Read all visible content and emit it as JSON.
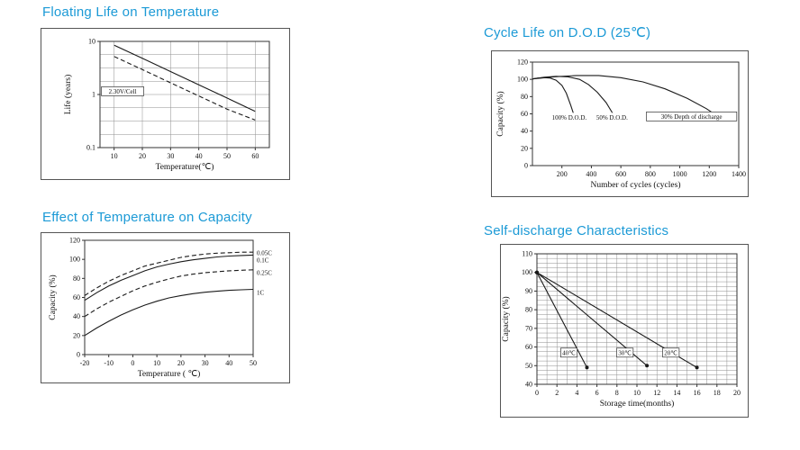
{
  "accent_color": "#1c9ad6",
  "background": "#ffffff",
  "chart_data": [
    {
      "name": "floating-life",
      "type": "line",
      "title": "Floating Life on Temperature",
      "xlabel": "Temperature(℃)",
      "ylabel": "Life (years)",
      "x_min": 5,
      "x_max": 65,
      "x_ticks": [
        10,
        20,
        30,
        40,
        50,
        60
      ],
      "y_scale": "log",
      "y_min": 0.1,
      "y_max": 10,
      "y_ticks": [
        0.1,
        1,
        10
      ],
      "x_grid_on_ticks": true,
      "y_grid_count": 8,
      "margins": {
        "l": 65,
        "r": 22,
        "t": 14,
        "b": 35
      },
      "series": [
        {
          "name": "float-life-upper-limit",
          "dashed": false,
          "points": [
            [
              10,
              8.5
            ],
            [
              20,
              4.8
            ],
            [
              30,
              2.7
            ],
            [
              40,
              1.52
            ],
            [
              50,
              0.86
            ],
            [
              60,
              0.48
            ]
          ]
        },
        {
          "name": "float-life-lower-limit",
          "dashed": true,
          "points": [
            [
              10,
              5.2
            ],
            [
              20,
              2.95
            ],
            [
              30,
              1.66
            ],
            [
              40,
              0.94
            ],
            [
              50,
              0.53
            ],
            [
              60,
              0.33
            ]
          ]
        }
      ],
      "annotations": [
        {
          "text": "2.30V/Cell",
          "x": 13,
          "y": 1.15,
          "boxed": true,
          "bg": true
        }
      ]
    },
    {
      "name": "cycle-life",
      "type": "line",
      "title": "Cycle Life on D.O.D (25℃)",
      "xlabel": "Number of cycles (cycles)",
      "ylabel": "Capacity (%)",
      "x_min": 0,
      "x_max": 1400,
      "x_ticks": [
        200,
        400,
        600,
        800,
        1000,
        1200,
        1400
      ],
      "y_min": 0,
      "y_max": 120,
      "y_ticks": [
        0,
        20,
        40,
        60,
        80,
        100,
        120
      ],
      "margins": {
        "l": 45,
        "r": 10,
        "t": 12,
        "b": 34
      },
      "series": [
        {
          "name": "100% D.O.D",
          "points": [
            [
              0,
              100.5
            ],
            [
              40,
              101.5
            ],
            [
              80,
              102
            ],
            [
              120,
              101.5
            ],
            [
              160,
              99
            ],
            [
              200,
              93
            ],
            [
              230,
              84
            ],
            [
              260,
              70
            ],
            [
              285,
              57
            ]
          ]
        },
        {
          "name": "50% D.O.D",
          "points": [
            [
              0,
              100.5
            ],
            [
              80,
              102.5
            ],
            [
              160,
              103.5
            ],
            [
              240,
              103
            ],
            [
              320,
              100
            ],
            [
              380,
              94
            ],
            [
              440,
              85
            ],
            [
              500,
              73
            ],
            [
              550,
              59
            ]
          ]
        },
        {
          "name": "30% Depth of discharge",
          "points": [
            [
              0,
              100.5
            ],
            [
              150,
              103
            ],
            [
              300,
              104.5
            ],
            [
              450,
              104.5
            ],
            [
              600,
              102
            ],
            [
              750,
              97
            ],
            [
              900,
              89
            ],
            [
              1050,
              78
            ],
            [
              1180,
              66
            ],
            [
              1260,
              57
            ]
          ]
        }
      ],
      "annotations": [
        {
          "text": "100% D.O.D.",
          "x": 250,
          "y": 56,
          "bg": true
        },
        {
          "text": "50% D.O.D.",
          "x": 540,
          "y": 56,
          "bg": true
        },
        {
          "text": "30% Depth of  discharge",
          "x": 1080,
          "y": 57,
          "bg": true,
          "boxed": true
        }
      ]
    },
    {
      "name": "temperature-capacity",
      "type": "line",
      "title": "Effect of Temperature on Capacity",
      "xlabel": "Temperature ( ℃)",
      "ylabel": "Capacity (%)",
      "x_min": -20,
      "x_max": 50,
      "x_ticks": [
        -20,
        -10,
        0,
        10,
        20,
        30,
        40,
        50
      ],
      "y_min": 0,
      "y_max": 120,
      "y_ticks": [
        0,
        20,
        40,
        60,
        80,
        100,
        120
      ],
      "margins": {
        "l": 48,
        "r": 40,
        "t": 8,
        "b": 31
      },
      "series": [
        {
          "name": "0.05C",
          "dashed": true,
          "points": [
            [
              -20,
              62
            ],
            [
              -15,
              70
            ],
            [
              -10,
              77
            ],
            [
              -5,
              83
            ],
            [
              0,
              88
            ],
            [
              5,
              93
            ],
            [
              10,
              96
            ],
            [
              15,
              99
            ],
            [
              20,
              102
            ],
            [
              25,
              104
            ],
            [
              30,
              105.5
            ],
            [
              35,
              106.5
            ],
            [
              40,
              107
            ],
            [
              45,
              107.5
            ],
            [
              50,
              107.5
            ]
          ]
        },
        {
          "name": "0.1C",
          "dashed": false,
          "points": [
            [
              -20,
              57
            ],
            [
              -15,
              65
            ],
            [
              -10,
              72
            ],
            [
              -5,
              78
            ],
            [
              0,
              83
            ],
            [
              5,
              88
            ],
            [
              10,
              92
            ],
            [
              15,
              95
            ],
            [
              20,
              97.5
            ],
            [
              25,
              99.5
            ],
            [
              30,
              101
            ],
            [
              35,
              102.5
            ],
            [
              40,
              103.5
            ],
            [
              45,
              104
            ],
            [
              50,
              104.5
            ]
          ]
        },
        {
          "name": "0.25C",
          "dashed": true,
          "points": [
            [
              -20,
              40
            ],
            [
              -15,
              48
            ],
            [
              -10,
              55
            ],
            [
              -5,
              61
            ],
            [
              0,
              67
            ],
            [
              5,
              72
            ],
            [
              10,
              76
            ],
            [
              15,
              79.5
            ],
            [
              20,
              82.5
            ],
            [
              25,
              84.5
            ],
            [
              30,
              86
            ],
            [
              35,
              87
            ],
            [
              40,
              88
            ],
            [
              45,
              88.5
            ],
            [
              50,
              89
            ]
          ]
        },
        {
          "name": "1C",
          "dashed": false,
          "points": [
            [
              -20,
              20
            ],
            [
              -15,
              28
            ],
            [
              -10,
              35
            ],
            [
              -5,
              41.5
            ],
            [
              0,
              47
            ],
            [
              5,
              52
            ],
            [
              10,
              56
            ],
            [
              15,
              59.5
            ],
            [
              20,
              62
            ],
            [
              25,
              64
            ],
            [
              30,
              65.5
            ],
            [
              35,
              66.5
            ],
            [
              40,
              67.5
            ],
            [
              45,
              68
            ],
            [
              50,
              68.5
            ]
          ]
        }
      ],
      "annotations": [
        {
          "text": "0.05C",
          "x": 51.5,
          "y": 107,
          "anchor": "start"
        },
        {
          "text": "0.1C",
          "x": 51.5,
          "y": 99,
          "anchor": "start"
        },
        {
          "text": "0.25C",
          "x": 51.5,
          "y": 86,
          "anchor": "start"
        },
        {
          "text": "1C",
          "x": 51.5,
          "y": 65,
          "anchor": "start"
        }
      ]
    },
    {
      "name": "self-discharge",
      "type": "line",
      "title": "Self-discharge Characteristics",
      "xlabel": "Storage time(months)",
      "ylabel": "Capacity (%)",
      "x_min": 0,
      "x_max": 20,
      "x_ticks": [
        0,
        2,
        4,
        6,
        8,
        10,
        12,
        14,
        16,
        18,
        20
      ],
      "y_min": 40,
      "y_max": 110,
      "y_ticks": [
        40,
        50,
        60,
        70,
        80,
        90,
        100,
        110
      ],
      "x_grid_step": 1,
      "y_grid_step": 2.5,
      "margins": {
        "l": 40,
        "r": 12,
        "t": 10,
        "b": 36
      },
      "series": [
        {
          "name": "40℃",
          "markers": true,
          "points": [
            [
              0,
              100
            ],
            [
              5,
              49
            ]
          ]
        },
        {
          "name": "30℃",
          "markers": true,
          "points": [
            [
              0,
              100
            ],
            [
              11,
              50
            ]
          ]
        },
        {
          "name": "20℃",
          "markers": true,
          "points": [
            [
              0,
              100
            ],
            [
              16,
              49
            ]
          ]
        }
      ],
      "annotations": [
        {
          "text": "40℃",
          "x": 3.2,
          "y": 57,
          "bg": true,
          "boxed": true
        },
        {
          "text": "30℃",
          "x": 8.8,
          "y": 57,
          "bg": true,
          "boxed": true
        },
        {
          "text": "20℃",
          "x": 13.4,
          "y": 57,
          "bg": true,
          "boxed": true
        }
      ]
    }
  ]
}
